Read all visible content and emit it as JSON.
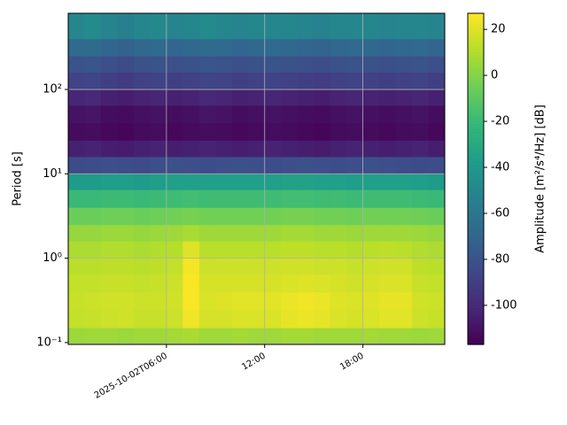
{
  "chart_data": {
    "type": "heatmap",
    "ylabel": "Period [s]",
    "colorbar_label": "Amplitude [m²/s⁴/Hz] [dB]",
    "colormap": "viridis",
    "log_y": true,
    "grid": true,
    "xlim": [
      0,
      23
    ],
    "xticks": [
      {
        "value": 6,
        "label": "2025-10-02T06:00"
      },
      {
        "value": 12,
        "label": "12:00"
      },
      {
        "value": 18,
        "label": "18:00"
      }
    ],
    "ylim": [
      0.095,
      800
    ],
    "yticks": [
      {
        "value": 0.1,
        "label": "10⁻¹"
      },
      {
        "value": 1,
        "label": "10⁰"
      },
      {
        "value": 10,
        "label": "10¹"
      },
      {
        "value": 100,
        "label": "10²"
      }
    ],
    "clim": [
      -117,
      27
    ],
    "cticks": [
      -100,
      -80,
      -60,
      -40,
      -20,
      0,
      20
    ],
    "x": [
      0,
      1,
      2,
      3,
      4,
      5,
      6,
      7,
      8,
      9,
      10,
      11,
      12,
      13,
      14,
      15,
      16,
      17,
      18,
      19,
      20,
      21,
      22,
      23
    ],
    "y": [
      0.095,
      0.15,
      0.25,
      0.4,
      0.65,
      1.0,
      1.6,
      2.5,
      4,
      6.5,
      10,
      16,
      25,
      40,
      65,
      100,
      160,
      250,
      400,
      800
    ],
    "z": [
      [
        5,
        6,
        6,
        5,
        6,
        6,
        7,
        8,
        6,
        6,
        7,
        6,
        6,
        7,
        7,
        6,
        6,
        6,
        7,
        6,
        6,
        5,
        6
      ],
      [
        14,
        15,
        16,
        17,
        15,
        15,
        16,
        24,
        18,
        18,
        19,
        19,
        19,
        22,
        23,
        22,
        19,
        18,
        19,
        21,
        21,
        16,
        15
      ],
      [
        15,
        16,
        17,
        17,
        16,
        16,
        17,
        26,
        19,
        20,
        21,
        21,
        21,
        23,
        24,
        23,
        20,
        19,
        20,
        22,
        22,
        17,
        16
      ],
      [
        14,
        14,
        15,
        15,
        14,
        15,
        16,
        26,
        18,
        18,
        18,
        18,
        18,
        19,
        20,
        19,
        18,
        17,
        18,
        19,
        19,
        15,
        14
      ],
      [
        12,
        12,
        13,
        13,
        12,
        13,
        14,
        25,
        16,
        16,
        16,
        16,
        16,
        17,
        17,
        16,
        16,
        15,
        16,
        17,
        17,
        13,
        12
      ],
      [
        9,
        9,
        10,
        10,
        9,
        10,
        11,
        20,
        12,
        12,
        12,
        12,
        12,
        13,
        13,
        12,
        12,
        11,
        12,
        13,
        12,
        10,
        9
      ],
      [
        4,
        4,
        5,
        5,
        4,
        5,
        6,
        8,
        6,
        6,
        6,
        6,
        6,
        7,
        7,
        6,
        6,
        5,
        6,
        6,
        6,
        5,
        4
      ],
      [
        -6,
        -6,
        -5,
        -5,
        -6,
        -5,
        -4,
        -3,
        -4,
        -4,
        -4,
        -4,
        -4,
        -3,
        -3,
        -4,
        -4,
        -5,
        -4,
        -4,
        -4,
        -5,
        -6
      ],
      [
        -20,
        -20,
        -19,
        -19,
        -20,
        -19,
        -18,
        -17,
        -18,
        -18,
        -18,
        -18,
        -18,
        -17,
        -17,
        -18,
        -18,
        -19,
        -18,
        -18,
        -18,
        -19,
        -20
      ],
      [
        -38,
        -38,
        -37,
        -37,
        -38,
        -37,
        -36,
        -36,
        -36,
        -36,
        -36,
        -36,
        -36,
        -35,
        -35,
        -36,
        -36,
        -37,
        -36,
        -36,
        -36,
        -37,
        -38
      ],
      [
        -84,
        -83,
        -82,
        -83,
        -84,
        -82,
        -81,
        -82,
        -83,
        -82,
        -81,
        -82,
        -83,
        -82,
        -81,
        -82,
        -83,
        -82,
        -81,
        -82,
        -83,
        -84,
        -83
      ],
      [
        -104,
        -103,
        -105,
        -106,
        -104,
        -103,
        -105,
        -104,
        -103,
        -104,
        -105,
        -104,
        -103,
        -104,
        -105,
        -106,
        -104,
        -103,
        -104,
        -105,
        -104,
        -103,
        -105
      ],
      [
        -113,
        -112,
        -114,
        -115,
        -113,
        -112,
        -114,
        -113,
        -112,
        -113,
        -114,
        -113,
        -112,
        -113,
        -114,
        -115,
        -113,
        -112,
        -113,
        -114,
        -113,
        -112,
        -114
      ],
      [
        -110,
        -109,
        -112,
        -113,
        -111,
        -110,
        -112,
        -111,
        -109,
        -110,
        -112,
        -111,
        -110,
        -111,
        -112,
        -113,
        -111,
        -110,
        -111,
        -112,
        -111,
        -110,
        -112
      ],
      [
        -102,
        -101,
        -104,
        -105,
        -103,
        -102,
        -104,
        -103,
        -101,
        -102,
        -104,
        -103,
        -102,
        -103,
        -104,
        -105,
        -103,
        -102,
        -103,
        -104,
        -103,
        -102,
        -104
      ],
      [
        -88,
        -87,
        -90,
        -92,
        -89,
        -88,
        -90,
        -89,
        -87,
        -88,
        -90,
        -89,
        -88,
        -89,
        -90,
        -91,
        -89,
        -88,
        -89,
        -90,
        -89,
        -88,
        -90
      ],
      [
        -80,
        -79,
        -82,
        -84,
        -81,
        -80,
        -82,
        -81,
        -79,
        -80,
        -82,
        -81,
        -80,
        -81,
        -82,
        -83,
        -81,
        -80,
        -81,
        -82,
        -81,
        -80,
        -82
      ],
      [
        -68,
        -67,
        -70,
        -72,
        -69,
        -68,
        -70,
        -69,
        -67,
        -68,
        -70,
        -69,
        -68,
        -69,
        -70,
        -71,
        -69,
        -68,
        -69,
        -70,
        -69,
        -68,
        -70
      ],
      [
        -50,
        -48,
        -52,
        -54,
        -50,
        -49,
        -52,
        -51,
        -48,
        -50,
        -52,
        -51,
        -50,
        -51,
        -52,
        -53,
        -51,
        -50,
        -51,
        -52,
        -51,
        -50,
        -52
      ]
    ]
  }
}
